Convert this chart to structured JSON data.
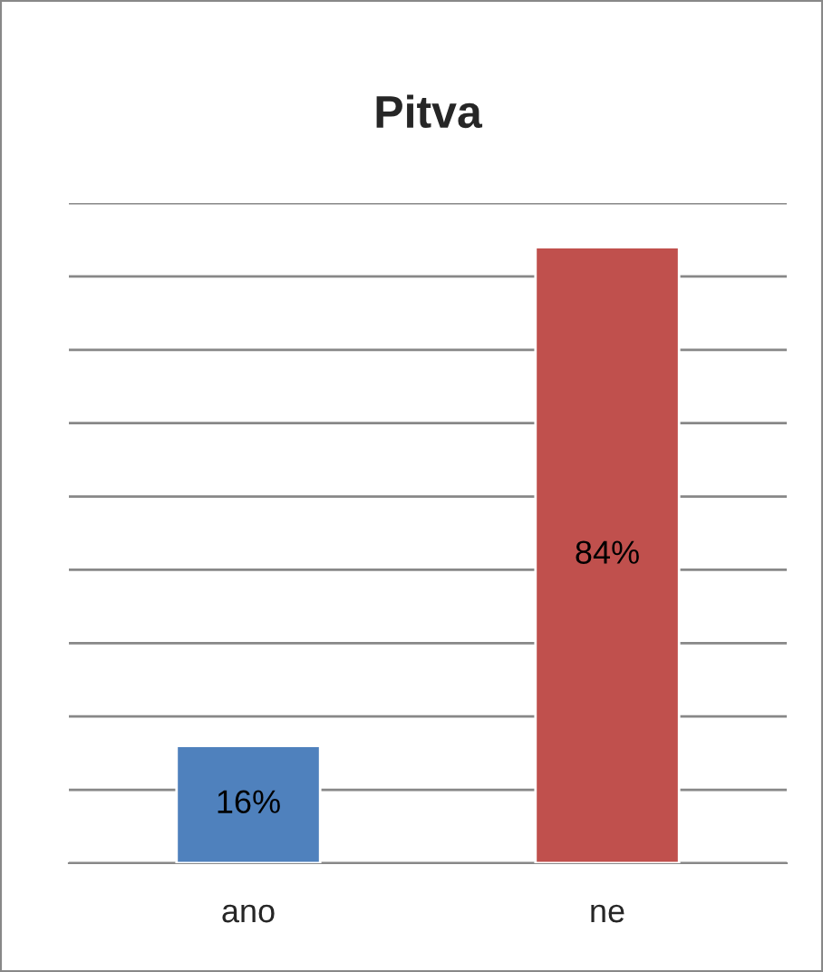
{
  "chart_data": {
    "type": "bar",
    "title": "Pitva",
    "categories": [
      "ano",
      "ne"
    ],
    "values": [
      16,
      84
    ],
    "colors": [
      "#4f81bd",
      "#c0504d"
    ],
    "value_labels": [
      "16%",
      "84%"
    ],
    "ylim": [
      0,
      90
    ],
    "yticks": [
      {
        "value": 0,
        "label": null
      },
      {
        "value": 10,
        "label": null
      },
      {
        "value": 20,
        "label": null
      },
      {
        "value": 30,
        "label": null
      },
      {
        "value": 40,
        "label": null
      },
      {
        "value": 50,
        "label": null
      },
      {
        "value": 60,
        "label": null
      },
      {
        "value": 70,
        "label": null
      },
      {
        "value": 80,
        "label": null
      },
      {
        "value": 90,
        "label": null
      }
    ],
    "grid": "y",
    "tick_labels": "x",
    "legend": false
  }
}
